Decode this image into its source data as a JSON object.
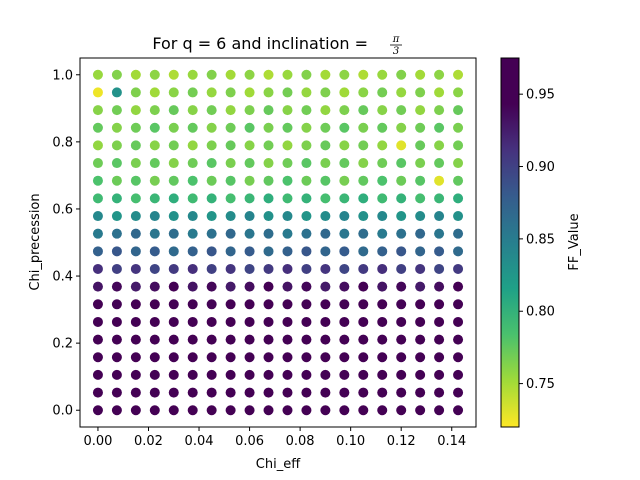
{
  "chart_data": {
    "type": "scatter",
    "title_prefix": "For q = 6 and inclination = ",
    "title_frac_num": "π",
    "title_frac_den": "3",
    "xlabel": "Chi_eff",
    "ylabel": "Chi_precession",
    "colorbar_label": "FF_Value",
    "colormap": "viridis_r",
    "x": [
      0.0,
      0.0075,
      0.015,
      0.0225,
      0.03,
      0.0375,
      0.045,
      0.0525,
      0.06,
      0.0675,
      0.075,
      0.0825,
      0.09,
      0.0975,
      0.105,
      0.1125,
      0.12,
      0.1275,
      0.135,
      0.1425
    ],
    "y": [
      0.0,
      0.0526,
      0.1053,
      0.1579,
      0.2105,
      0.2632,
      0.3158,
      0.3684,
      0.4211,
      0.4737,
      0.5263,
      0.5789,
      0.6316,
      0.6842,
      0.7368,
      0.7895,
      0.8421,
      0.8947,
      0.9474,
      1.0
    ],
    "xlim": [
      -0.0071,
      0.1496
    ],
    "ylim": [
      -0.05,
      1.05
    ],
    "x_ticks": [
      0.0,
      0.02,
      0.04,
      0.06,
      0.08,
      0.1,
      0.12,
      0.14
    ],
    "x_tick_labels": [
      "0.00",
      "0.02",
      "0.04",
      "0.06",
      "0.08",
      "0.10",
      "0.12",
      "0.14"
    ],
    "y_ticks": [
      0.0,
      0.2,
      0.4,
      0.6,
      0.8,
      1.0
    ],
    "y_tick_labels": [
      "0.0",
      "0.2",
      "0.4",
      "0.6",
      "0.8",
      "1.0"
    ],
    "colorbar_range": [
      0.72,
      0.975
    ],
    "colorbar_ticks": [
      0.75,
      0.8,
      0.85,
      0.9,
      0.95
    ],
    "colorbar_tick_labels": [
      "0.75",
      "0.80",
      "0.85",
      "0.90",
      "0.95"
    ],
    "row_base_values": [
      0.955,
      0.958,
      0.96,
      0.962,
      0.963,
      0.96,
      0.95,
      0.935,
      0.905,
      0.875,
      0.86,
      0.835,
      0.795,
      0.775,
      0.77,
      0.765,
      0.77,
      0.765,
      0.76,
      0.755
    ],
    "special_points": [
      {
        "xi": 0,
        "yi": 18,
        "value": 0.725
      },
      {
        "xi": 1,
        "yi": 18,
        "value": 0.83
      },
      {
        "xi": 16,
        "yi": 15,
        "value": 0.73
      },
      {
        "xi": 18,
        "yi": 13,
        "value": 0.73
      }
    ]
  }
}
